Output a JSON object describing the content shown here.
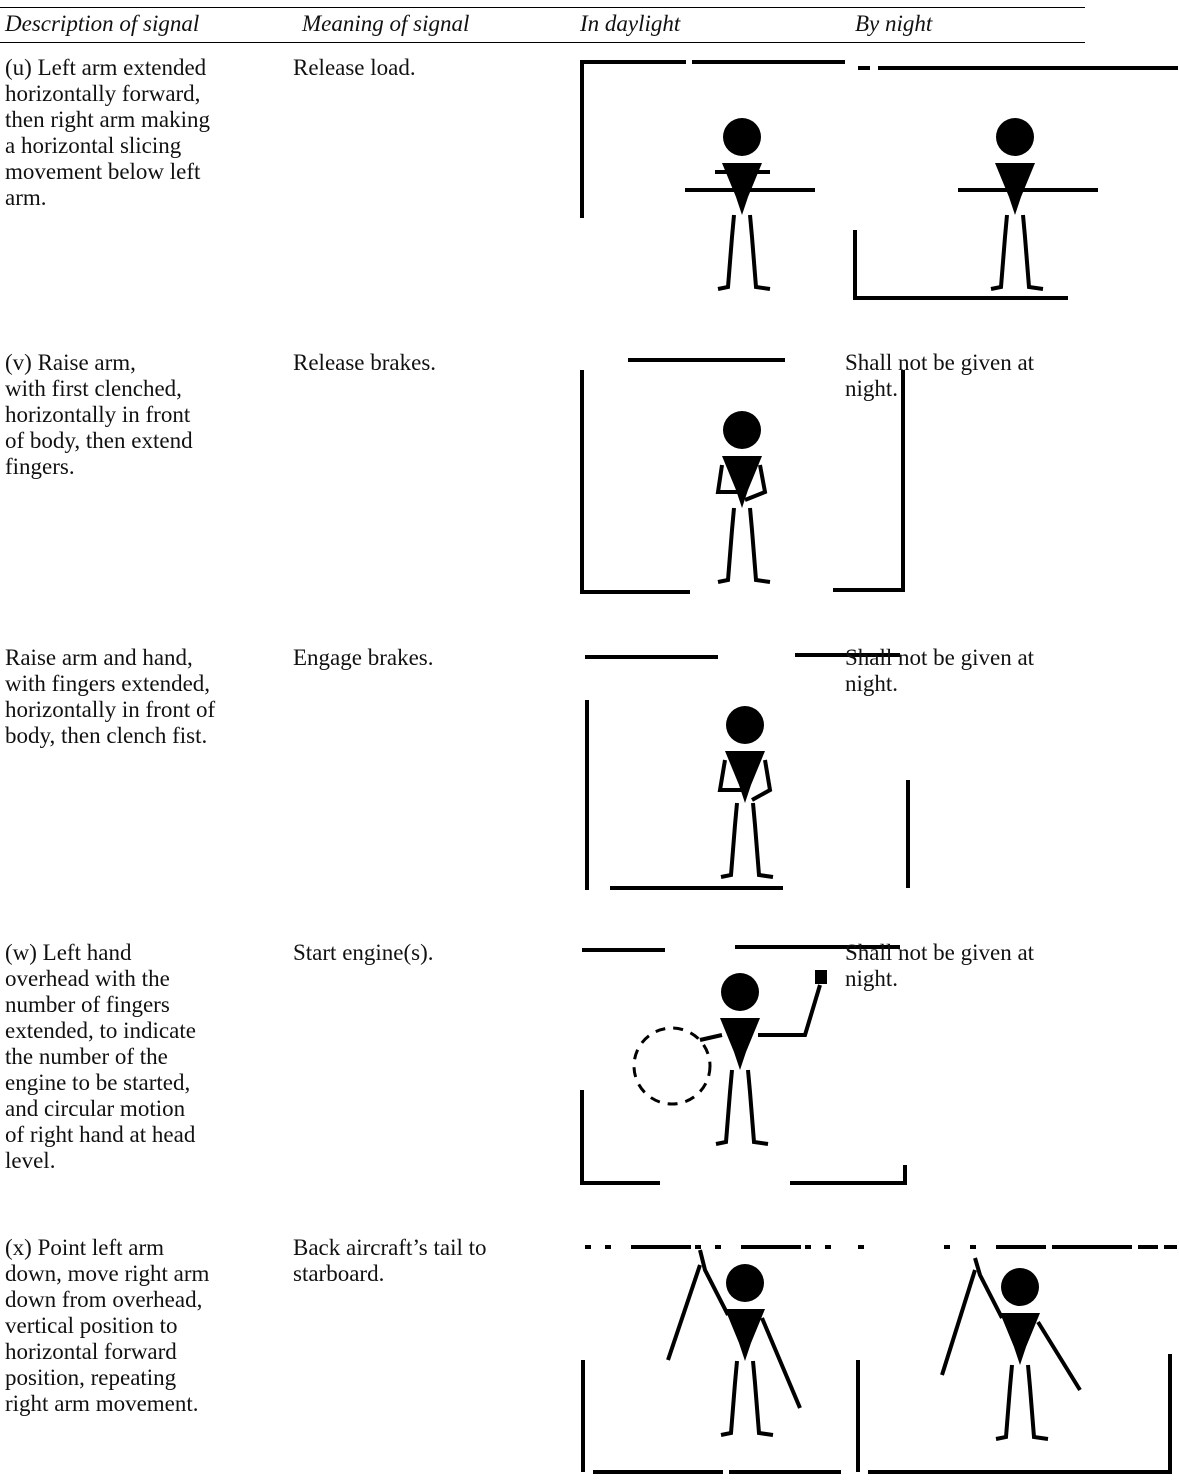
{
  "header": {
    "columns": [
      "Description of signal",
      "Meaning of signal",
      "In daylight",
      "By night"
    ]
  },
  "rows": [
    {
      "description": [
        "(u) Left arm extended",
        "horizontally forward,",
        "then right arm making",
        "a horizontal slicing",
        "movement below left",
        "arm."
      ],
      "meaning": "Release load."
    },
    {
      "description": [
        "(v) Raise arm,",
        "with first clenched,",
        "horizontally in front",
        "of body, then extend",
        "fingers."
      ],
      "meaning": "Release brakes.",
      "night": "Shall not be given at night."
    },
    {
      "description": [
        "Raise arm and hand,",
        "with fingers extended,",
        "horizontally in front of",
        "body, then clench fist."
      ],
      "meaning": "Engage brakes.",
      "night": "Shall not be given at night."
    },
    {
      "description": [
        "(w) Left hand",
        "overhead with the",
        "number of fingers",
        "extended, to indicate",
        "the number of the",
        "engine to be started,",
        "and circular motion",
        "of right hand at head",
        "level."
      ],
      "meaning": "Start engine(s).",
      "night": "Shall not be given at night."
    },
    {
      "description": [
        "(x) Point left arm",
        "down, move right arm",
        "down from overhead,",
        "vertical position to",
        "horizontal forward",
        "position, repeating",
        "right arm movement."
      ],
      "meaning": "Back aircraft’s tail to starboard."
    }
  ]
}
